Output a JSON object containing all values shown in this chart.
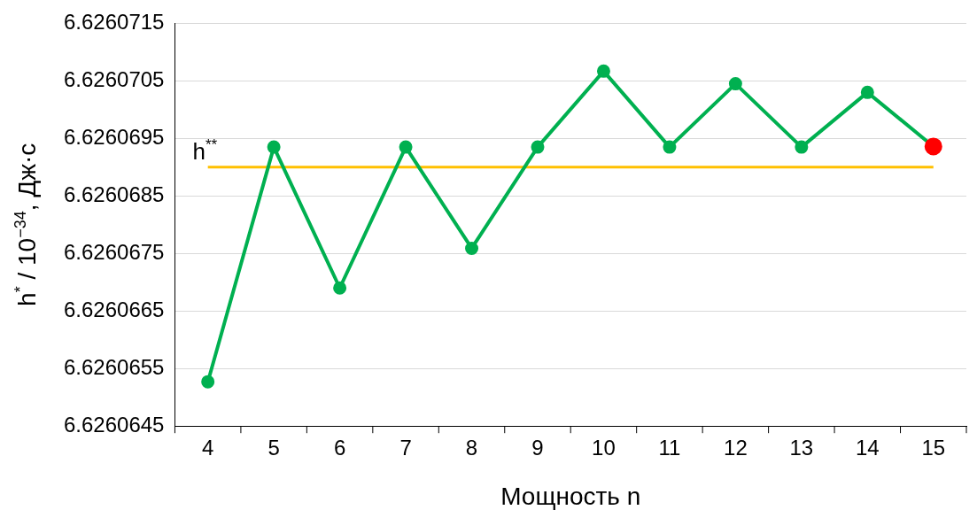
{
  "chart_data": {
    "type": "line",
    "xlabel": "Мощность n",
    "ylabel": "h$^{*}$ / 10$^{−34}$, Дж·с",
    "categories": [
      "4",
      "5",
      "6",
      "7",
      "8",
      "9",
      "10",
      "11",
      "12",
      "13",
      "14",
      "15"
    ],
    "series": [
      {
        "color": "#00b050",
        "colors": [
          "#00b050",
          "#00b050",
          "#00b050",
          "#00b050",
          "#00b050",
          "#00b050",
          "#00b050",
          "#00b050",
          "#00b050",
          "#00b050",
          "#00b050",
          "#ff0000"
        ],
        "values": [
          6.62606527,
          6.62606935,
          6.6260669,
          6.62606935,
          6.62606759,
          6.62606935,
          6.62607067,
          6.62606935,
          6.62607045,
          6.62606935,
          6.6260703,
          6.62606936
        ]
      }
    ],
    "ylim": [
      6.6260645,
      6.6260715
    ],
    "yticks": [
      6.6260645,
      6.6260655,
      6.6260665,
      6.6260675,
      6.6260685,
      6.6260695,
      6.6260705,
      6.6260715
    ],
    "ref_lines": [
      {
        "axis": "y",
        "value": 6.626069,
        "label": "h$^{**}$",
        "color": "#ffc000"
      }
    ],
    "grid": "y",
    "marker": "circle",
    "line_style": "solid",
    "legend": false
  }
}
